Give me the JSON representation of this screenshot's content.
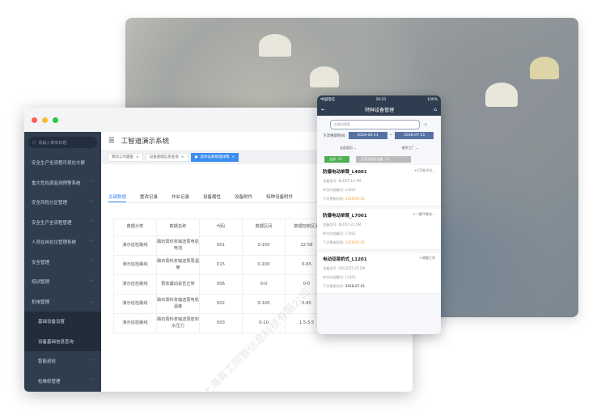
{
  "colors": {
    "sidebar": "#2f3d4f",
    "accent": "#3d8ef0",
    "phone_nav": "#2f3d50",
    "green": "#4caf50",
    "orange": "#f0a030"
  },
  "window": {
    "search_placeholder": "请输入菜单标题",
    "title": "工智道演示系统",
    "sidebar": [
      {
        "label": "安全生产全流程可视化大屏",
        "chevron": false
      },
      {
        "label": "重大危险源监测预警系统",
        "chevron": true
      },
      {
        "label": "安全风险分区管理",
        "chevron": true
      },
      {
        "label": "安全生产全流程管理",
        "chevron": true
      },
      {
        "label": "人员在岗在位管理系统",
        "chevron": true
      },
      {
        "label": "安全管理",
        "chevron": true
      },
      {
        "label": "培训管理",
        "chevron": true
      },
      {
        "label": "机电管理",
        "chevron": true,
        "expanded": true
      }
    ],
    "sidebar_sub": [
      "基础设备设置",
      "设备基础信息查询"
    ],
    "sidebar_sub2": [
      "智能巡检",
      "检维修管理"
    ],
    "open_tabs": [
      {
        "label": "我的工作面板",
        "active": false
      },
      {
        "label": "设备基础信息查询",
        "active": false
      },
      {
        "label": "具体设备管理详情",
        "active": true
      }
    ],
    "content_tabs": [
      "关键数据",
      "整改记录",
      "作业记录",
      "设备属性",
      "设备附件",
      "特种设备附件"
    ],
    "table": {
      "headers": [
        "数据分类",
        "数据名称",
        "代码",
        "数据区间",
        "数据控制区间"
      ],
      "rows": [
        [
          "演示巡检路线",
          "磷石膏料浆输送泵电机电流",
          "001",
          "0-100",
          "22-58"
        ],
        [
          "演示巡检路线",
          "磷石膏料浆输送泵泵温度",
          "015",
          "0-100",
          "0-65"
        ],
        [
          "演示巡检路线",
          "泵体震动是否正常",
          "006",
          "0-0",
          "0-0"
        ],
        [
          "演示巡检路线",
          "磷石膏料浆输送泵电机温度",
          "002",
          "0-100",
          "0-85"
        ],
        [
          "演示巡检路线",
          "磷石膏料浆输送泵密封水压力",
          "003",
          "0-10",
          "1.5-3.5"
        ]
      ]
    }
  },
  "phone": {
    "carrier": "中国电信",
    "time": "20:21",
    "battery": "100%",
    "title": "特种设备管理",
    "search_placeholder": "关键词搜索",
    "date_label": "下次更新时间:",
    "date_from": "2018-04-11",
    "date_sep": "~",
    "date_to": "2018-07-11",
    "filter_category": "全部类别",
    "filter_factory": "南京工厂",
    "chip_all": "全部（3）",
    "chip_expired": "只显示临检设备（2）",
    "cards": [
      {
        "name": "防爆电动单臂_L4001",
        "location": "CO发冷分...",
        "model_label": "设备型号:",
        "model": "BLD5T-14.5M",
        "code_label": "单位内部编号:",
        "code": "L4001",
        "date_label": "下次更新时间:",
        "date": "2018-05-01",
        "overdue": true
      },
      {
        "name": "防爆电动单臂_L7001",
        "location": "一酸平鲸合...",
        "model_label": "设备型号:",
        "model": "BLD5T-22.5M",
        "code_label": "单位内部编号:",
        "code": "L7001",
        "date_label": "下次更新时间:",
        "date": "2018-05-01",
        "overdue": true
      },
      {
        "name": "电动双梁桥式_L1201",
        "location": "磷酸工序",
        "model_label": "设备型号:",
        "model": "QD32/5T-25.5M",
        "code_label": "单位内部编号:",
        "code": "L1201",
        "date_label": "下次更新时间:",
        "date": "2018-07-01",
        "overdue": false
      }
    ]
  },
  "watermark": "上海昇工同智信息科技有限公司"
}
